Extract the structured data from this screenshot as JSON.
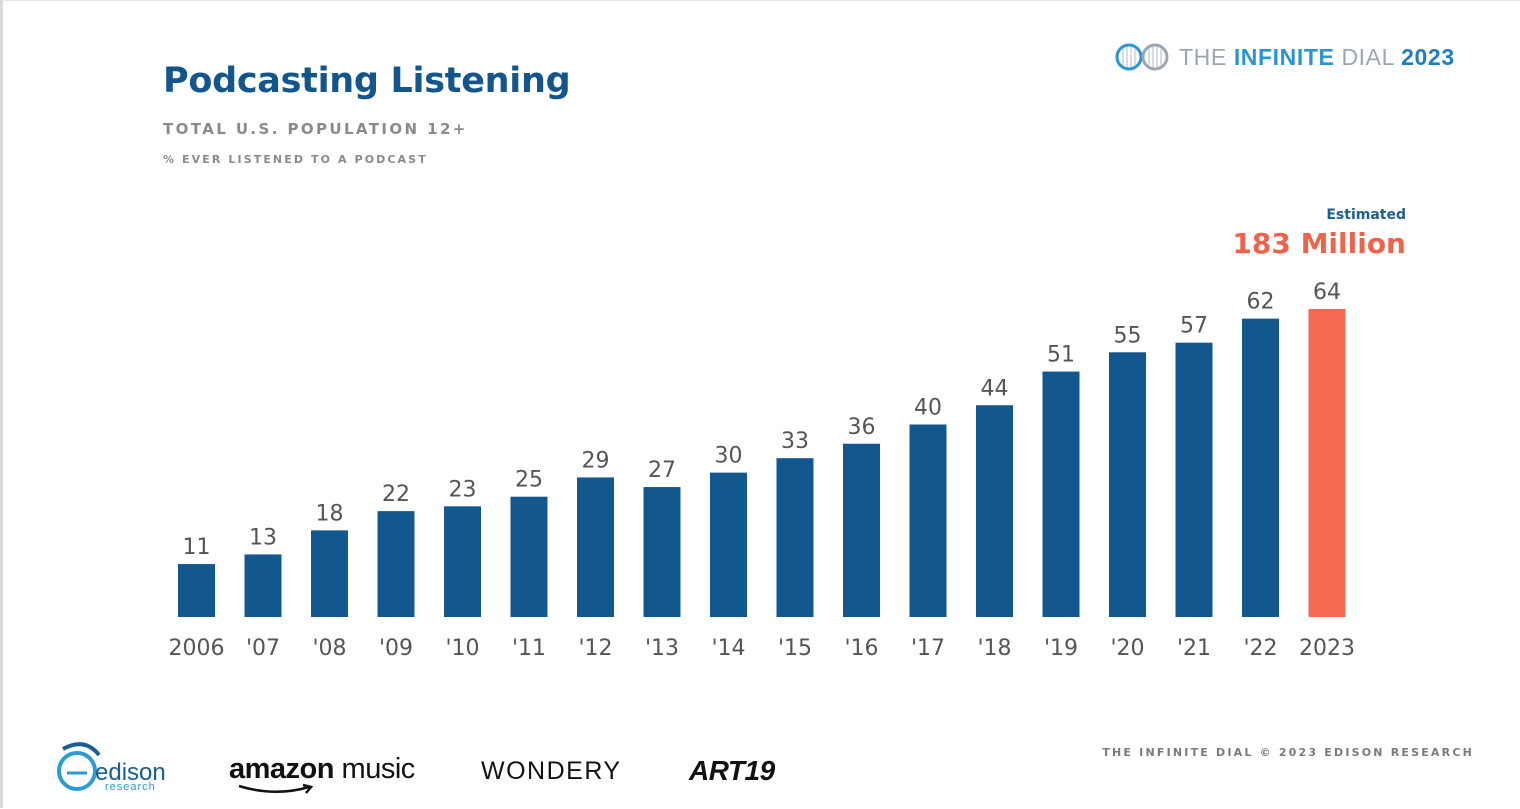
{
  "header": {
    "title": "Podcasting Listening",
    "subtitle": "TOTAL U.S. POPULATION 12+",
    "subtitle2": "% EVER LISTENED TO A PODCAST",
    "brand_the": "THE",
    "brand_infinite": "INFINITE",
    "brand_dial": "DIAL",
    "brand_year": "2023"
  },
  "annotation": {
    "label": "Estimated",
    "value": "183 Million"
  },
  "colors": {
    "bar": "#13578f",
    "highlight": "#f46a51",
    "label": "#555555"
  },
  "chart_data": {
    "type": "bar",
    "title": "Podcasting Listening",
    "subtitle": "TOTAL U.S. POPULATION 12+",
    "ylabel": "% EVER LISTENED TO A PODCAST",
    "categories": [
      "2006",
      "'07",
      "'08",
      "'09",
      "'10",
      "'11",
      "'12",
      "'13",
      "'14",
      "'15",
      "'16",
      "'17",
      "'18",
      "'19",
      "'20",
      "'21",
      "'22",
      "2023"
    ],
    "values": [
      11,
      13,
      18,
      22,
      23,
      25,
      29,
      27,
      30,
      33,
      36,
      40,
      44,
      51,
      55,
      57,
      62,
      64
    ],
    "highlight_index": 17,
    "ylim": [
      0,
      64
    ],
    "grid": false,
    "legend": "none"
  },
  "footer": {
    "credit": "THE INFINITE DIAL  © 2023 EDISON RESEARCH",
    "logos": {
      "edison": "edison",
      "edison_sub": "research",
      "amazon_a": "amazon",
      "amazon_b": "music",
      "wondery": "WONDERY",
      "art19": "ART19"
    }
  }
}
